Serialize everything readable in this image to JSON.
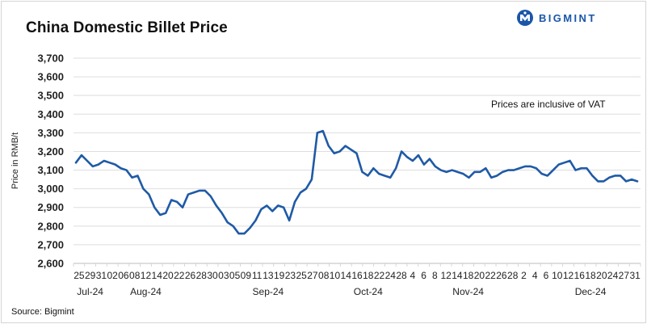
{
  "title": "China Domestic Billet Price",
  "logo": {
    "text": "BIGMINT",
    "icon": "bigmint-logo-icon"
  },
  "source": "Source: Bigmint",
  "chart_data": {
    "type": "line",
    "title": "China Domestic Billet Price",
    "ylabel": "Price in RMB/t",
    "xlabel": "",
    "ylim": [
      2600,
      3700
    ],
    "yticks": [
      2600,
      2700,
      2800,
      2900,
      3000,
      3100,
      3200,
      3300,
      3400,
      3500,
      3600,
      3700
    ],
    "ytick_labels": [
      "2,600",
      "2,700",
      "2,800",
      "2,900",
      "3,000",
      "3,100",
      "3,200",
      "3,300",
      "3,400",
      "3,500",
      "3,600",
      "3,700"
    ],
    "grid": true,
    "annotation": "Prices are inclusive of VAT",
    "color": "#1f5aa6",
    "day_labels": [
      "25",
      "29",
      "31",
      "02",
      "06",
      "08",
      "12",
      "14",
      "20",
      "22",
      "26",
      "28",
      "30",
      "03",
      "05",
      "09",
      "11",
      "13",
      "19",
      "23",
      "25",
      "27",
      "08",
      "10",
      "14",
      "16",
      "18",
      "22",
      "24",
      "28",
      "4",
      "6",
      "8",
      "12",
      "14",
      "18",
      "20",
      "22",
      "26",
      "28",
      "2",
      "4",
      "6",
      "10",
      "12",
      "16",
      "18",
      "20",
      "24",
      "27",
      "31"
    ],
    "month_labels": [
      {
        "label": "Jul-24",
        "at": 1
      },
      {
        "label": "Aug-24",
        "at": 6
      },
      {
        "label": "Sep-24",
        "at": 17
      },
      {
        "label": "Oct-24",
        "at": 26
      },
      {
        "label": "Nov-24",
        "at": 35
      },
      {
        "label": "Dec-24",
        "at": 46
      }
    ],
    "series": [
      {
        "values": [
          3140,
          3180,
          3150,
          3120,
          3130,
          3150,
          3140,
          3130,
          3110,
          3100,
          3060,
          3070,
          3000,
          2970,
          2900,
          2860,
          2870,
          2940,
          2930,
          2900,
          2970,
          2980,
          2990,
          2990,
          2960,
          2910,
          2870,
          2820,
          2800,
          2760,
          2760,
          2790,
          2830,
          2890,
          2910,
          2880,
          2910,
          2900,
          2830,
          2930,
          2980,
          3000,
          3050,
          3300,
          3310,
          3230,
          3190,
          3200,
          3230,
          3210,
          3190,
          3090,
          3070,
          3110,
          3080,
          3070,
          3060,
          3110,
          3200,
          3170,
          3150,
          3180,
          3130,
          3160,
          3120,
          3100,
          3090,
          3100,
          3090,
          3080,
          3060,
          3090,
          3090,
          3110,
          3060,
          3070,
          3090,
          3100,
          3100,
          3110,
          3120,
          3120,
          3110,
          3080,
          3070,
          3100,
          3130,
          3140,
          3150,
          3100,
          3110,
          3110,
          3070,
          3040,
          3040,
          3060,
          3070,
          3070,
          3040,
          3050,
          3040
        ]
      }
    ]
  }
}
